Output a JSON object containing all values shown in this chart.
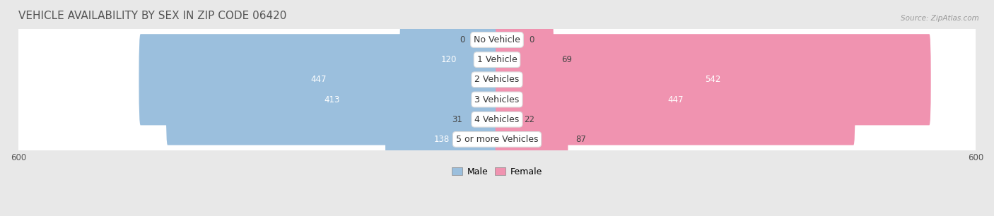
{
  "title": "VEHICLE AVAILABILITY BY SEX IN ZIP CODE 06420",
  "source": "Source: ZipAtlas.com",
  "categories": [
    "No Vehicle",
    "1 Vehicle",
    "2 Vehicles",
    "3 Vehicles",
    "4 Vehicles",
    "5 or more Vehicles"
  ],
  "male_values": [
    0,
    120,
    447,
    413,
    31,
    138
  ],
  "female_values": [
    0,
    69,
    542,
    447,
    22,
    87
  ],
  "male_color": "#9bbfdd",
  "female_color": "#f093b0",
  "male_label": "Male",
  "female_label": "Female",
  "x_max": 600,
  "bg_color": "#e8e8e8",
  "row_bg_color": "#f5f5f5",
  "title_fontsize": 11,
  "label_fontsize": 9,
  "value_fontsize": 8.5,
  "axis_label_fontsize": 8.5
}
